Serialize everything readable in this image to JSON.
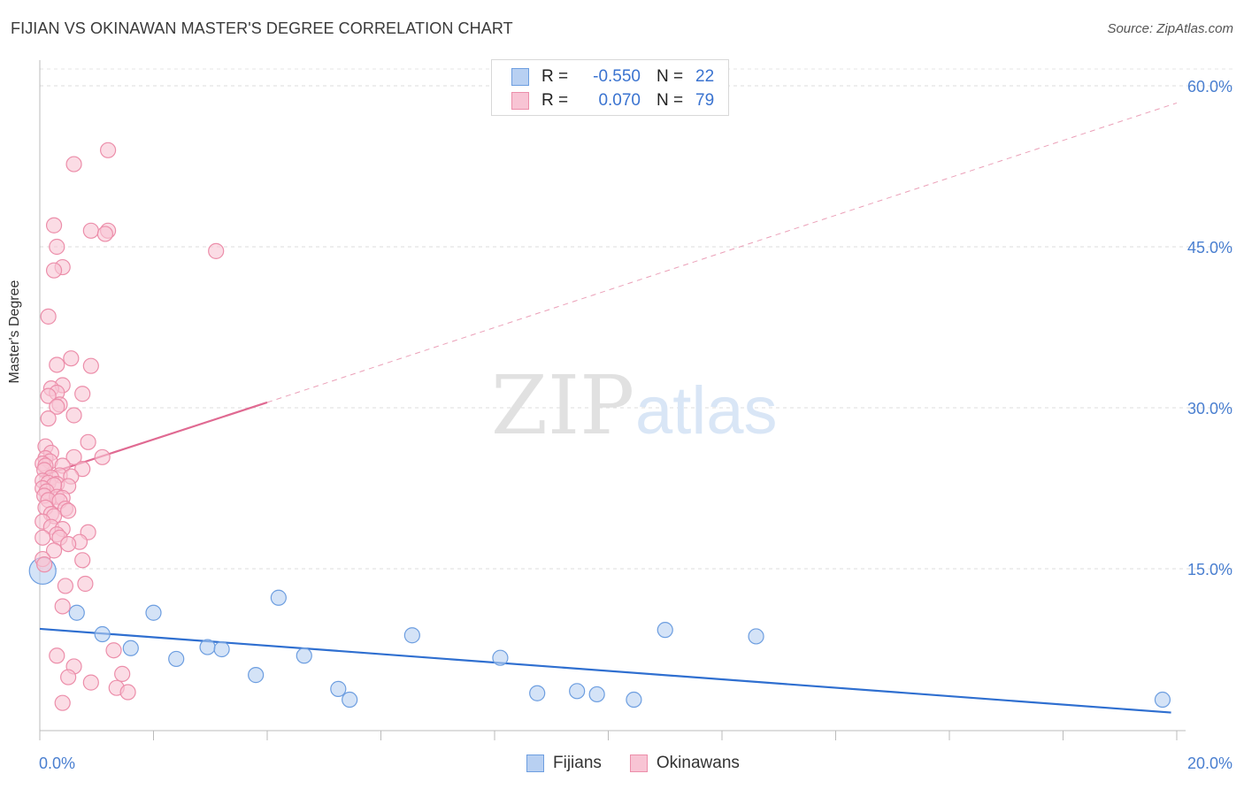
{
  "header": {
    "title": "FIJIAN VS OKINAWAN MASTER'S DEGREE CORRELATION CHART",
    "source": "Source: ZipAtlas.com"
  },
  "watermark": {
    "zip": "ZIP",
    "atlas": "atlas"
  },
  "legend": {
    "rows": [
      {
        "r_label": "R =",
        "r_value": "-0.550",
        "n_label": "N =",
        "n_value": "22",
        "color": "#b8d0f2",
        "border": "#6d9ee0"
      },
      {
        "r_label": "R =",
        "r_value": "0.070",
        "n_label": "N =",
        "n_value": "79",
        "color": "#f8c4d4",
        "border": "#ec8eaa"
      }
    ]
  },
  "bottom_legend": [
    {
      "label": "Fijians",
      "color": "#b8d0f2",
      "border": "#6d9ee0"
    },
    {
      "label": "Okinawans",
      "color": "#f8c4d4",
      "border": "#ec8eaa"
    }
  ],
  "chart_data": {
    "type": "scatter",
    "title": "FIJIAN VS OKINAWAN MASTER'S DEGREE CORRELATION CHART",
    "xlabel": "",
    "ylabel": "Master's Degree",
    "xlim": [
      0,
      20
    ],
    "ylim": [
      0,
      62
    ],
    "x_tick_labels": [
      "0.0%",
      "20.0%"
    ],
    "y_ticks": [
      15,
      30,
      45,
      60
    ],
    "y_tick_labels": [
      "15.0%",
      "30.0%",
      "45.0%",
      "60.0%"
    ],
    "grid": true,
    "series": [
      {
        "name": "Fijians",
        "color": "#6d9ee0",
        "fill": "#b8d0f2",
        "points": [
          [
            0.05,
            14.8
          ],
          [
            0.65,
            10.9
          ],
          [
            1.1,
            8.9
          ],
          [
            1.6,
            7.6
          ],
          [
            2.0,
            10.9
          ],
          [
            2.4,
            6.6
          ],
          [
            2.95,
            7.7
          ],
          [
            3.2,
            7.5
          ],
          [
            3.8,
            5.1
          ],
          [
            4.2,
            12.3
          ],
          [
            4.65,
            6.9
          ],
          [
            5.25,
            3.8
          ],
          [
            5.45,
            2.8
          ],
          [
            6.55,
            8.8
          ],
          [
            8.1,
            6.7
          ],
          [
            8.75,
            3.4
          ],
          [
            9.45,
            3.6
          ],
          [
            9.8,
            3.3
          ],
          [
            10.45,
            2.8
          ],
          [
            11.0,
            9.3
          ],
          [
            12.6,
            8.7
          ],
          [
            19.75,
            2.8
          ]
        ],
        "trend": {
          "x": [
            0,
            19.9
          ],
          "y": [
            9.4,
            1.6
          ],
          "style": "solid"
        }
      },
      {
        "name": "Okinawans",
        "color": "#ec8eaa",
        "fill": "#f8c4d4",
        "points": [
          [
            1.2,
            54.0
          ],
          [
            0.6,
            52.7
          ],
          [
            0.25,
            47.0
          ],
          [
            0.9,
            46.5
          ],
          [
            1.2,
            46.5
          ],
          [
            1.15,
            46.2
          ],
          [
            0.3,
            45.0
          ],
          [
            3.1,
            44.6
          ],
          [
            0.4,
            43.1
          ],
          [
            0.25,
            42.8
          ],
          [
            0.15,
            38.5
          ],
          [
            0.55,
            34.6
          ],
          [
            0.9,
            33.9
          ],
          [
            0.3,
            34.0
          ],
          [
            0.4,
            32.1
          ],
          [
            0.2,
            31.8
          ],
          [
            0.3,
            31.4
          ],
          [
            0.75,
            31.3
          ],
          [
            0.15,
            31.1
          ],
          [
            0.35,
            30.3
          ],
          [
            0.3,
            30.1
          ],
          [
            0.6,
            29.3
          ],
          [
            0.15,
            29.0
          ],
          [
            0.85,
            26.8
          ],
          [
            0.1,
            26.4
          ],
          [
            0.2,
            25.8
          ],
          [
            1.1,
            25.4
          ],
          [
            0.6,
            25.4
          ],
          [
            0.1,
            25.3
          ],
          [
            0.18,
            25.0
          ],
          [
            0.05,
            24.8
          ],
          [
            0.4,
            24.6
          ],
          [
            0.1,
            24.6
          ],
          [
            0.08,
            24.2
          ],
          [
            0.75,
            24.3
          ],
          [
            0.35,
            23.7
          ],
          [
            0.2,
            23.5
          ],
          [
            0.55,
            23.6
          ],
          [
            0.05,
            23.2
          ],
          [
            0.15,
            23.0
          ],
          [
            0.3,
            22.9
          ],
          [
            0.5,
            22.7
          ],
          [
            0.25,
            22.8
          ],
          [
            0.05,
            22.5
          ],
          [
            0.12,
            22.2
          ],
          [
            0.08,
            21.8
          ],
          [
            0.3,
            21.7
          ],
          [
            0.4,
            21.6
          ],
          [
            0.15,
            21.4
          ],
          [
            0.35,
            21.3
          ],
          [
            0.1,
            20.7
          ],
          [
            0.45,
            20.6
          ],
          [
            0.5,
            20.4
          ],
          [
            0.2,
            20.1
          ],
          [
            0.25,
            19.9
          ],
          [
            0.05,
            19.4
          ],
          [
            0.2,
            18.9
          ],
          [
            0.4,
            18.7
          ],
          [
            0.85,
            18.4
          ],
          [
            0.3,
            18.2
          ],
          [
            0.35,
            17.9
          ],
          [
            0.05,
            17.9
          ],
          [
            0.7,
            17.5
          ],
          [
            0.5,
            17.3
          ],
          [
            0.25,
            16.7
          ],
          [
            0.05,
            15.9
          ],
          [
            0.75,
            15.8
          ],
          [
            0.08,
            15.4
          ],
          [
            0.8,
            13.6
          ],
          [
            0.45,
            13.4
          ],
          [
            0.4,
            11.5
          ],
          [
            1.3,
            7.4
          ],
          [
            0.3,
            6.9
          ],
          [
            0.6,
            5.9
          ],
          [
            1.45,
            5.2
          ],
          [
            0.5,
            4.9
          ],
          [
            0.9,
            4.4
          ],
          [
            1.35,
            3.9
          ],
          [
            1.55,
            3.5
          ],
          [
            0.4,
            2.5
          ]
        ],
        "trend": {
          "x": [
            0,
            4.0
          ],
          "y": [
            23.6,
            30.5
          ],
          "style": "solid",
          "extension": {
            "x": [
              4.0,
              20.0
            ],
            "y": [
              30.5,
              58.4
            ],
            "style": "dashed"
          }
        }
      }
    ]
  }
}
